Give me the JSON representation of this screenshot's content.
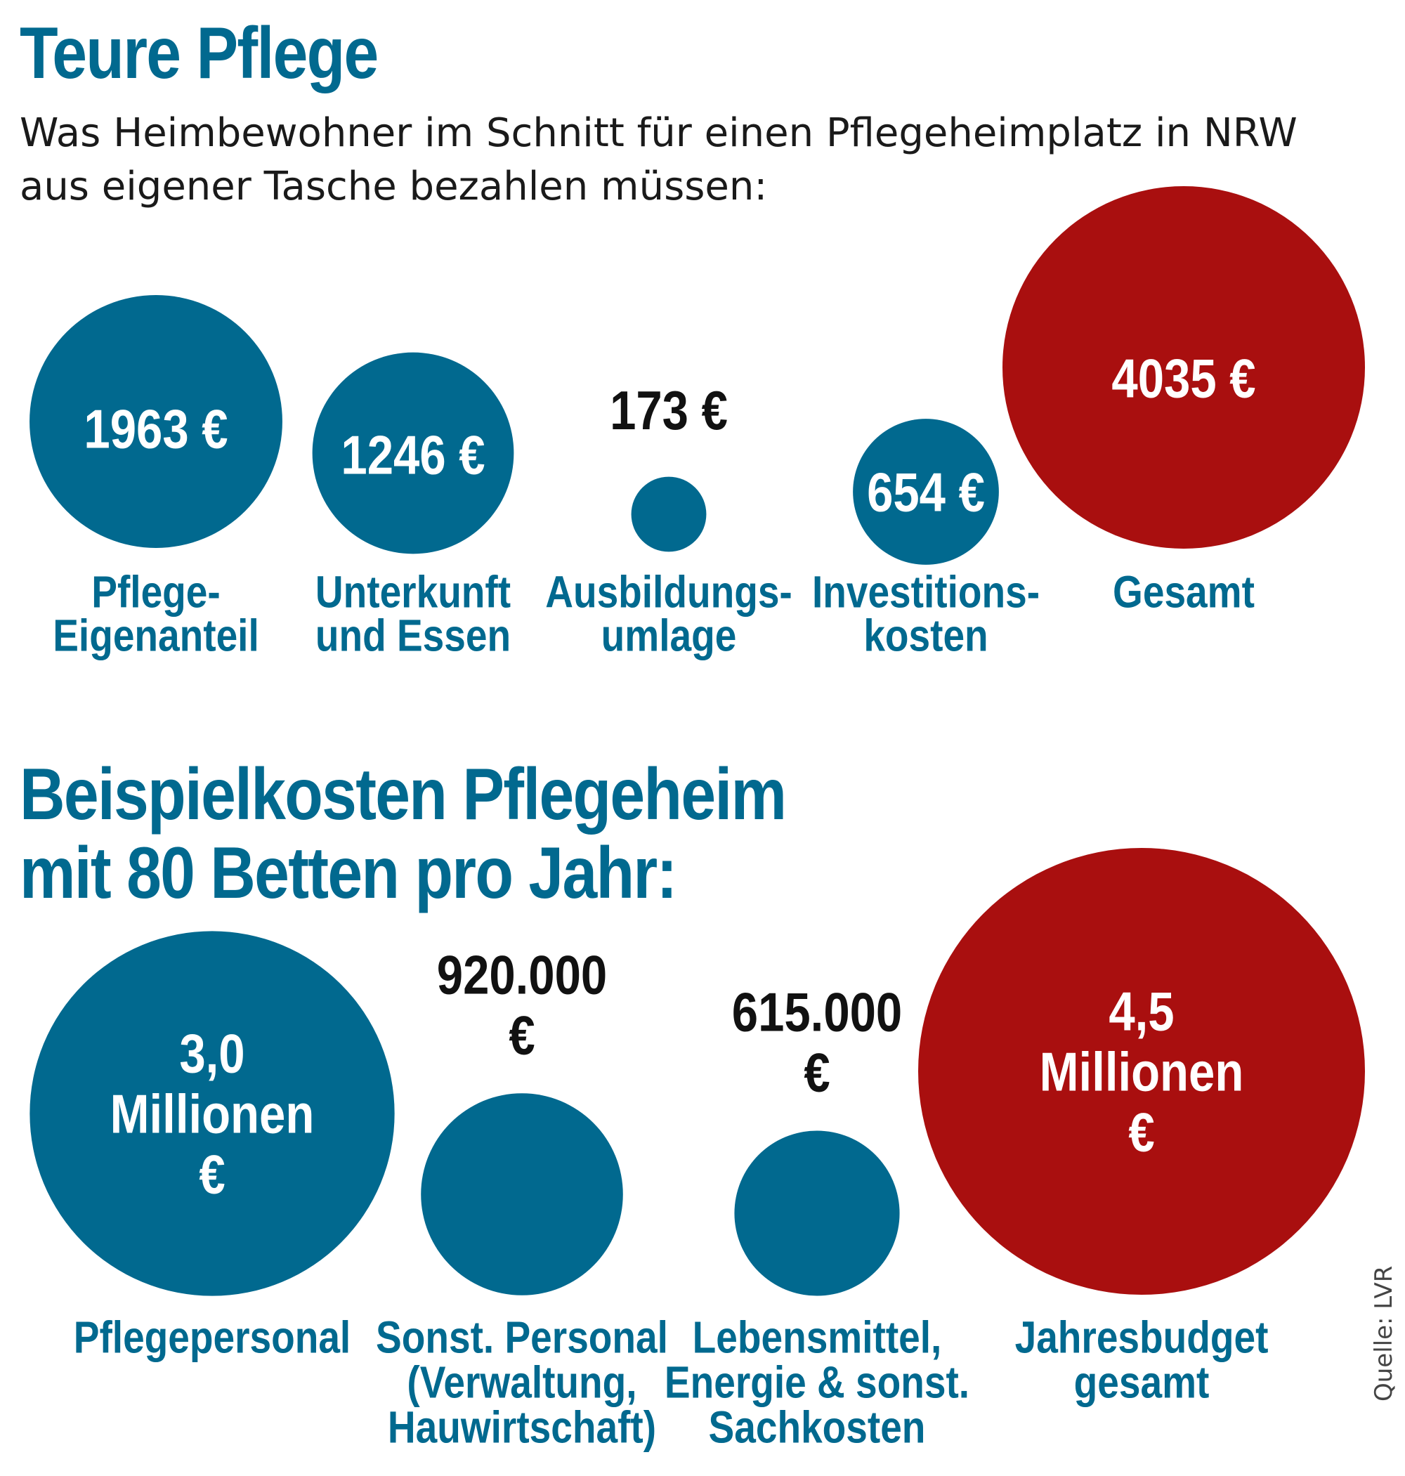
{
  "colors": {
    "blue": "#01698f",
    "red": "#a90f0f",
    "dark": "#111111",
    "white": "#ffffff"
  },
  "chart_data": [
    {
      "type": "bubble",
      "title": "Teure Pflege",
      "subtitle": "Was Heimbewohner im Schnitt für einen Pflegeheimplatz in NRW aus eigener Tasche bezahlen müssen:",
      "unit": "€",
      "categories": [
        [
          "Pflege-",
          "Eigenanteil"
        ],
        [
          "Unterkunft",
          "und Essen"
        ],
        [
          "Ausbildungs-",
          "umlage"
        ],
        [
          "Investitions-",
          "kosten"
        ],
        [
          "Gesamt"
        ]
      ],
      "values": [
        1963,
        1246,
        173,
        654,
        4035
      ],
      "value_labels": [
        [
          "1963 €"
        ],
        [
          "1246 €"
        ],
        [
          "173 €"
        ],
        [
          "654 €"
        ],
        [
          "4035 €"
        ]
      ],
      "label_inside": [
        true,
        true,
        false,
        true,
        true
      ],
      "highlight": [
        false,
        false,
        false,
        false,
        true
      ]
    },
    {
      "type": "bubble",
      "title": [
        "Beispielkosten Pflegeheim",
        "mit 80 Betten pro Jahr:"
      ],
      "unit": "€",
      "categories": [
        [
          "Pflegepersonal"
        ],
        [
          "Sonst. Personal",
          "(Verwaltung,",
          "Hauwirtschaft)"
        ],
        [
          "Lebensmittel,",
          "Energie & sonst.",
          "Sachkosten"
        ],
        [
          "Jahresbudget",
          "gesamt"
        ]
      ],
      "values": [
        3000000,
        920000,
        615000,
        4500000
      ],
      "value_labels": [
        [
          "3,0",
          "Millionen",
          "€"
        ],
        [
          "920.000",
          "€"
        ],
        [
          "615.000",
          "€"
        ],
        [
          "4,5",
          "Millionen",
          "€"
        ]
      ],
      "label_inside": [
        true,
        false,
        false,
        true
      ],
      "highlight": [
        false,
        false,
        false,
        true
      ]
    }
  ],
  "source": "Quelle: LVR"
}
